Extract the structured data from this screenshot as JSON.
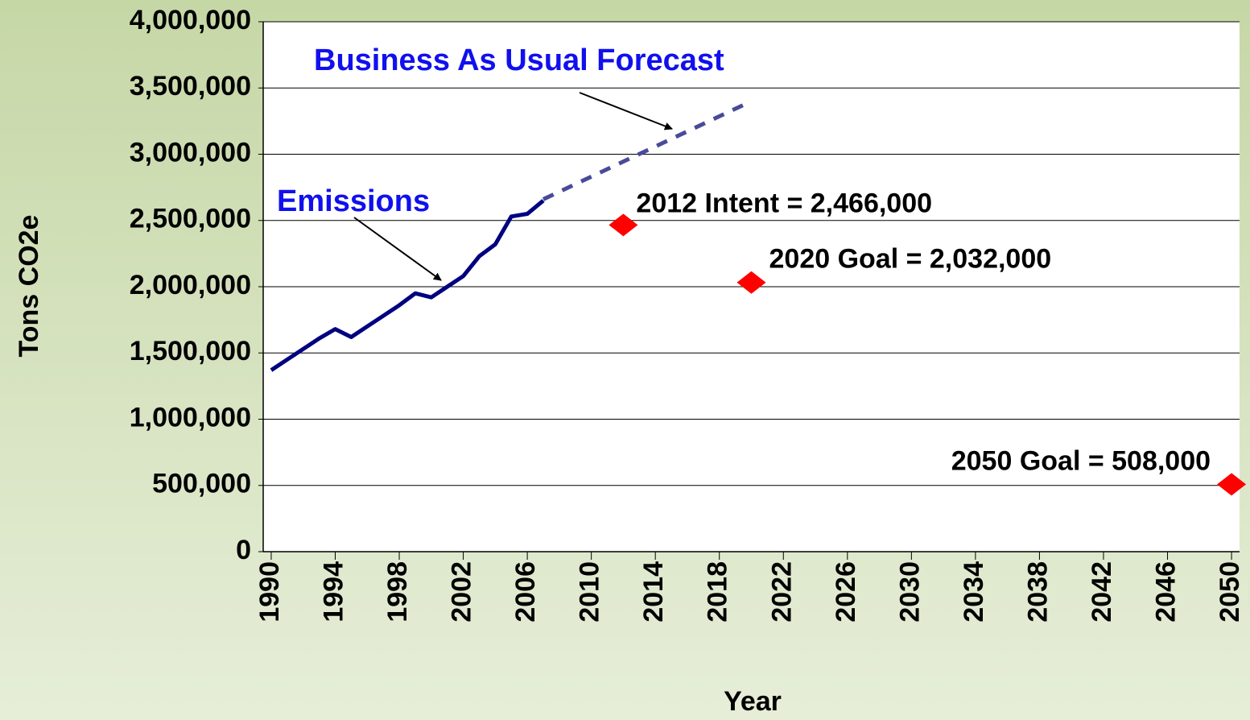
{
  "chart_data": {
    "type": "line",
    "x_label": "Year",
    "y_label": "Tons CO2e",
    "xlim": [
      1989.5,
      2050.5
    ],
    "xticks": [
      1990,
      1994,
      1998,
      2002,
      2006,
      2010,
      2014,
      2018,
      2022,
      2026,
      2030,
      2034,
      2038,
      2042,
      2046,
      2050
    ],
    "ylim": [
      0,
      4000000
    ],
    "yticks": [
      0,
      {
        "value": 500000,
        "label": "500,000"
      },
      {
        "value": 1000000,
        "label": "1,000,000"
      },
      {
        "value": 1500000,
        "label": "1,500,000"
      },
      {
        "value": 2000000,
        "label": "2,000,000"
      },
      {
        "value": 2500000,
        "label": "2,500,000"
      },
      {
        "value": 3000000,
        "label": "3,000,000"
      },
      {
        "value": 3500000,
        "label": "3,500,000"
      },
      {
        "value": 4000000,
        "label": "4,000,000"
      }
    ],
    "grid": true,
    "series": [
      {
        "name": "Emissions",
        "color": "#000080",
        "dashed": false,
        "x": [
          1990,
          1991,
          1992,
          1993,
          1994,
          1995,
          1996,
          1997,
          1998,
          1999,
          2000,
          2001,
          2002,
          2003,
          2004,
          2005,
          2006,
          2007
        ],
        "values": [
          1370000,
          1450000,
          1530000,
          1610000,
          1680000,
          1620000,
          1700000,
          1780000,
          1860000,
          1950000,
          1920000,
          2000000,
          2080000,
          2230000,
          2320000,
          2530000,
          2550000,
          2650000
        ]
      },
      {
        "name": "Business As Usual Forecast",
        "color": "#4a4a9a",
        "dashed": true,
        "x": [
          2007,
          2020
        ],
        "values": [
          2660000,
          3400000
        ]
      }
    ],
    "points": {
      "color": "#ff0000",
      "x": [
        2012,
        2020,
        2050
      ],
      "values": [
        2466000,
        2032000,
        508000
      ],
      "labels": [
        "2012 Intent = 2,466,000",
        "2020 Goal = 2,032,000",
        "2050 Goal = 508,000"
      ]
    }
  }
}
